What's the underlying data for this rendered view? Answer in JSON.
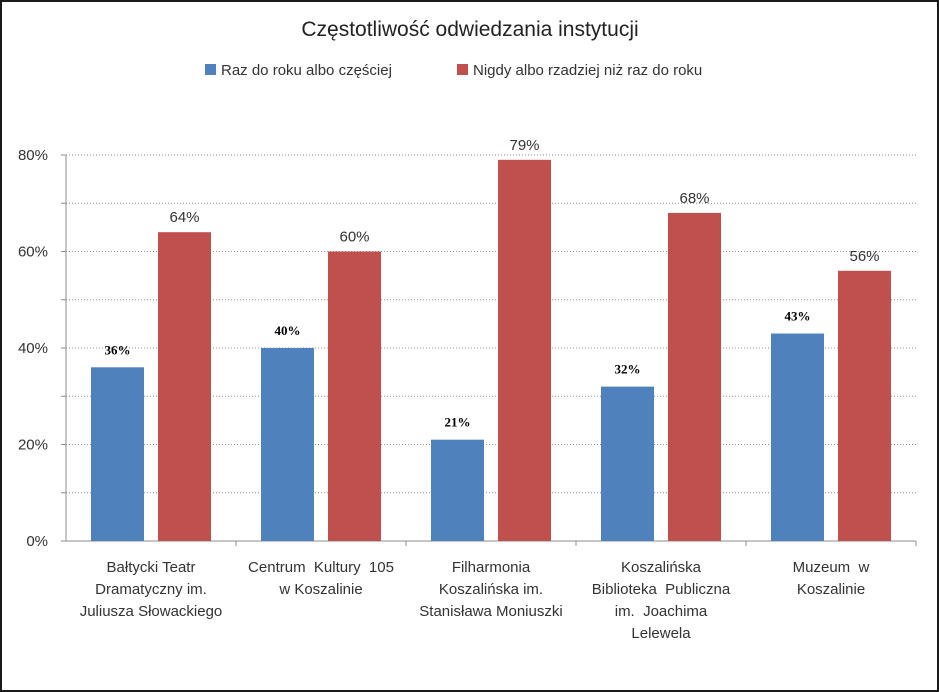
{
  "chart_data": {
    "type": "bar",
    "title": "Częstotliwość odwiedzania instytucji",
    "categories": [
      [
        "Bałtycki Teatr",
        "Dramatyczny im.",
        "Juliusza Słowackiego"
      ],
      [
        "Centrum  Kultury  105",
        "w Koszalinie"
      ],
      [
        "Filharmonia",
        "Koszalińska im.",
        "Stanisława Moniuszki"
      ],
      [
        "Koszalińska",
        "Biblioteka  Publiczna",
        "im.  Joachima",
        "Lelewela"
      ],
      [
        "Muzeum  w",
        "Koszalinie"
      ]
    ],
    "series": [
      {
        "name": "Raz do roku albo częściej",
        "color": "#4f81bd",
        "values": [
          36,
          40,
          21,
          32,
          43
        ],
        "labels": [
          "36%",
          "40%",
          "21%",
          "32%",
          "43%"
        ]
      },
      {
        "name": "Nigdy albo rzadziej niż raz do roku",
        "color": "#c0504d",
        "values": [
          64,
          60,
          79,
          68,
          56
        ],
        "labels": [
          "64%",
          "60%",
          "79%",
          "68%",
          "56%"
        ]
      }
    ],
    "yticks": [
      {
        "value": 0,
        "label": "0%"
      },
      {
        "value": 20,
        "label": "20%"
      },
      {
        "value": 40,
        "label": "40%"
      },
      {
        "value": 60,
        "label": "60%"
      },
      {
        "value": 80,
        "label": "80%"
      }
    ],
    "ylim": [
      0,
      80
    ],
    "legend_position": "top",
    "grid": true
  }
}
